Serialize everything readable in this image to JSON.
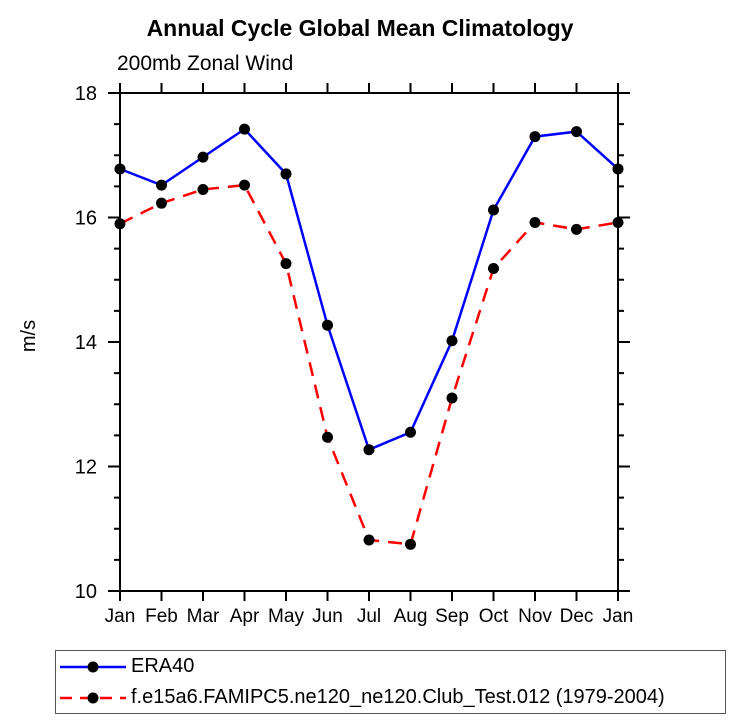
{
  "chart_data": {
    "type": "line",
    "title": "Annual Cycle Global Mean Climatology",
    "subtitle": "200mb Zonal Wind",
    "ylabel": "m/s",
    "xlabel": "",
    "categories": [
      "Jan",
      "Feb",
      "Mar",
      "Apr",
      "May",
      "Jun",
      "Jul",
      "Aug",
      "Sep",
      "Oct",
      "Nov",
      "Dec",
      "Jan"
    ],
    "series": [
      {
        "name": "ERA40",
        "color": "#0000ff",
        "style": "solid",
        "marker": "black-filled-circle",
        "values": [
          16.78,
          16.52,
          16.97,
          17.42,
          16.7,
          14.27,
          12.27,
          12.55,
          14.02,
          16.12,
          17.3,
          17.38,
          16.78
        ]
      },
      {
        "name": "f.e15a6.FAMIPC5.ne120_ne120.Club_Test.012 (1979-2004)",
        "color": "#ff0000",
        "style": "dashed",
        "marker": "black-filled-circle",
        "values": [
          15.9,
          16.23,
          16.45,
          16.52,
          15.26,
          12.47,
          10.82,
          10.75,
          13.1,
          15.18,
          15.92,
          15.81,
          15.92
        ]
      }
    ],
    "ylim": [
      10,
      18
    ],
    "yticks": [
      10,
      12,
      14,
      16,
      18
    ],
    "minor_tick_step": 0.5,
    "grid": false,
    "legend_position": "bottom-box",
    "axis_color": "#000000",
    "marker_color": "#000000"
  }
}
